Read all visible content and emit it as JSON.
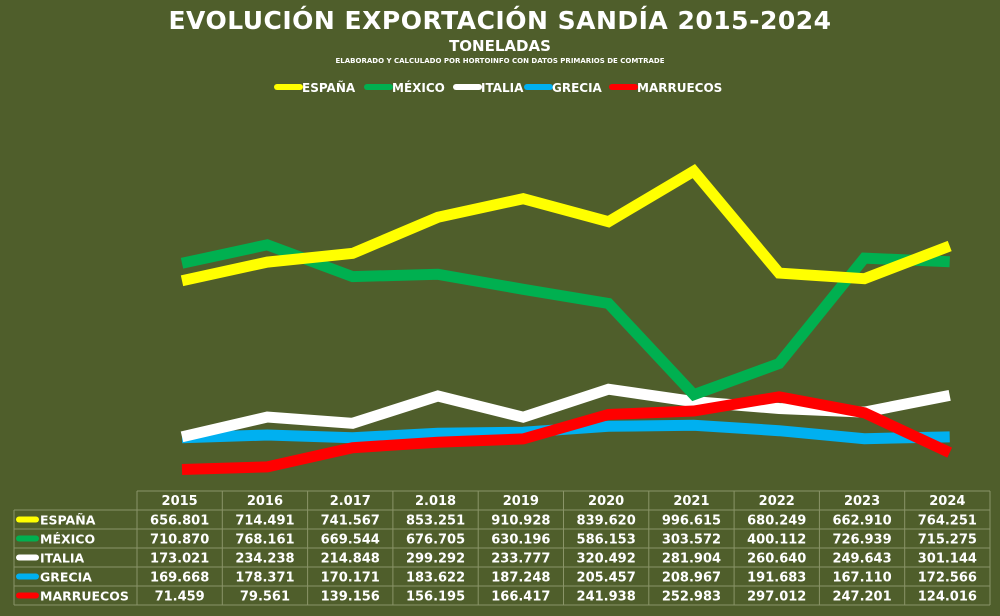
{
  "chart_data": {
    "type": "line",
    "title": "EVOLUCIÓN EXPORTACIÓN SANDÍA 2015-2024",
    "subtitle": "TONELADAS",
    "source_note": "ELABORADO Y CALCULADO POR HORTOINFO CON DATOS PRIMARIOS DE COMTRADE",
    "categories": [
      "2015",
      "2016",
      "2.017",
      "2.018",
      "2019",
      "2020",
      "2021",
      "2022",
      "2023",
      "2024"
    ],
    "legend_position": "top",
    "grid": false,
    "series": [
      {
        "name": "ESPAÑA",
        "color": "#ffff00",
        "values": [
          656801,
          714491,
          741567,
          853251,
          910928,
          839620,
          996615,
          680249,
          662910,
          764251
        ],
        "labels": [
          "656.801",
          "714.491",
          "741.567",
          "853.251",
          "910.928",
          "839.620",
          "996.615",
          "680.249",
          "662.910",
          "764.251"
        ]
      },
      {
        "name": "MÉXICO",
        "color": "#00b050",
        "values": [
          710870,
          768161,
          669544,
          676705,
          630196,
          586153,
          303572,
          400112,
          726939,
          715275
        ],
        "labels": [
          "710.870",
          "768.161",
          "669.544",
          "676.705",
          "630.196",
          "586.153",
          "303.572",
          "400.112",
          "726.939",
          "715.275"
        ]
      },
      {
        "name": "ITALIA",
        "color": "#ffffff",
        "values": [
          173021,
          234238,
          214848,
          299292,
          233777,
          320492,
          281904,
          260640,
          249643,
          301144
        ],
        "labels": [
          "173.021",
          "234.238",
          "214.848",
          "299.292",
          "233.777",
          "320.492",
          "281.904",
          "260.640",
          "249.643",
          "301.144"
        ]
      },
      {
        "name": "GRECIA",
        "color": "#00b0f0",
        "values": [
          169668,
          178371,
          170171,
          183622,
          187248,
          205457,
          208967,
          191683,
          167110,
          172566
        ],
        "labels": [
          "169.668",
          "178.371",
          "170.171",
          "183.622",
          "187.248",
          "205.457",
          "208.967",
          "191.683",
          "167.110",
          "172.566"
        ]
      },
      {
        "name": "MARRUECOS",
        "color": "#ff0000",
        "values": [
          71459,
          79561,
          139156,
          156195,
          166417,
          241938,
          252983,
          297012,
          247201,
          124016
        ],
        "labels": [
          "71.459",
          "79.561",
          "139.156",
          "156.195",
          "166.417",
          "241.938",
          "252.983",
          "297.012",
          "247.201",
          "124.016"
        ]
      }
    ]
  }
}
